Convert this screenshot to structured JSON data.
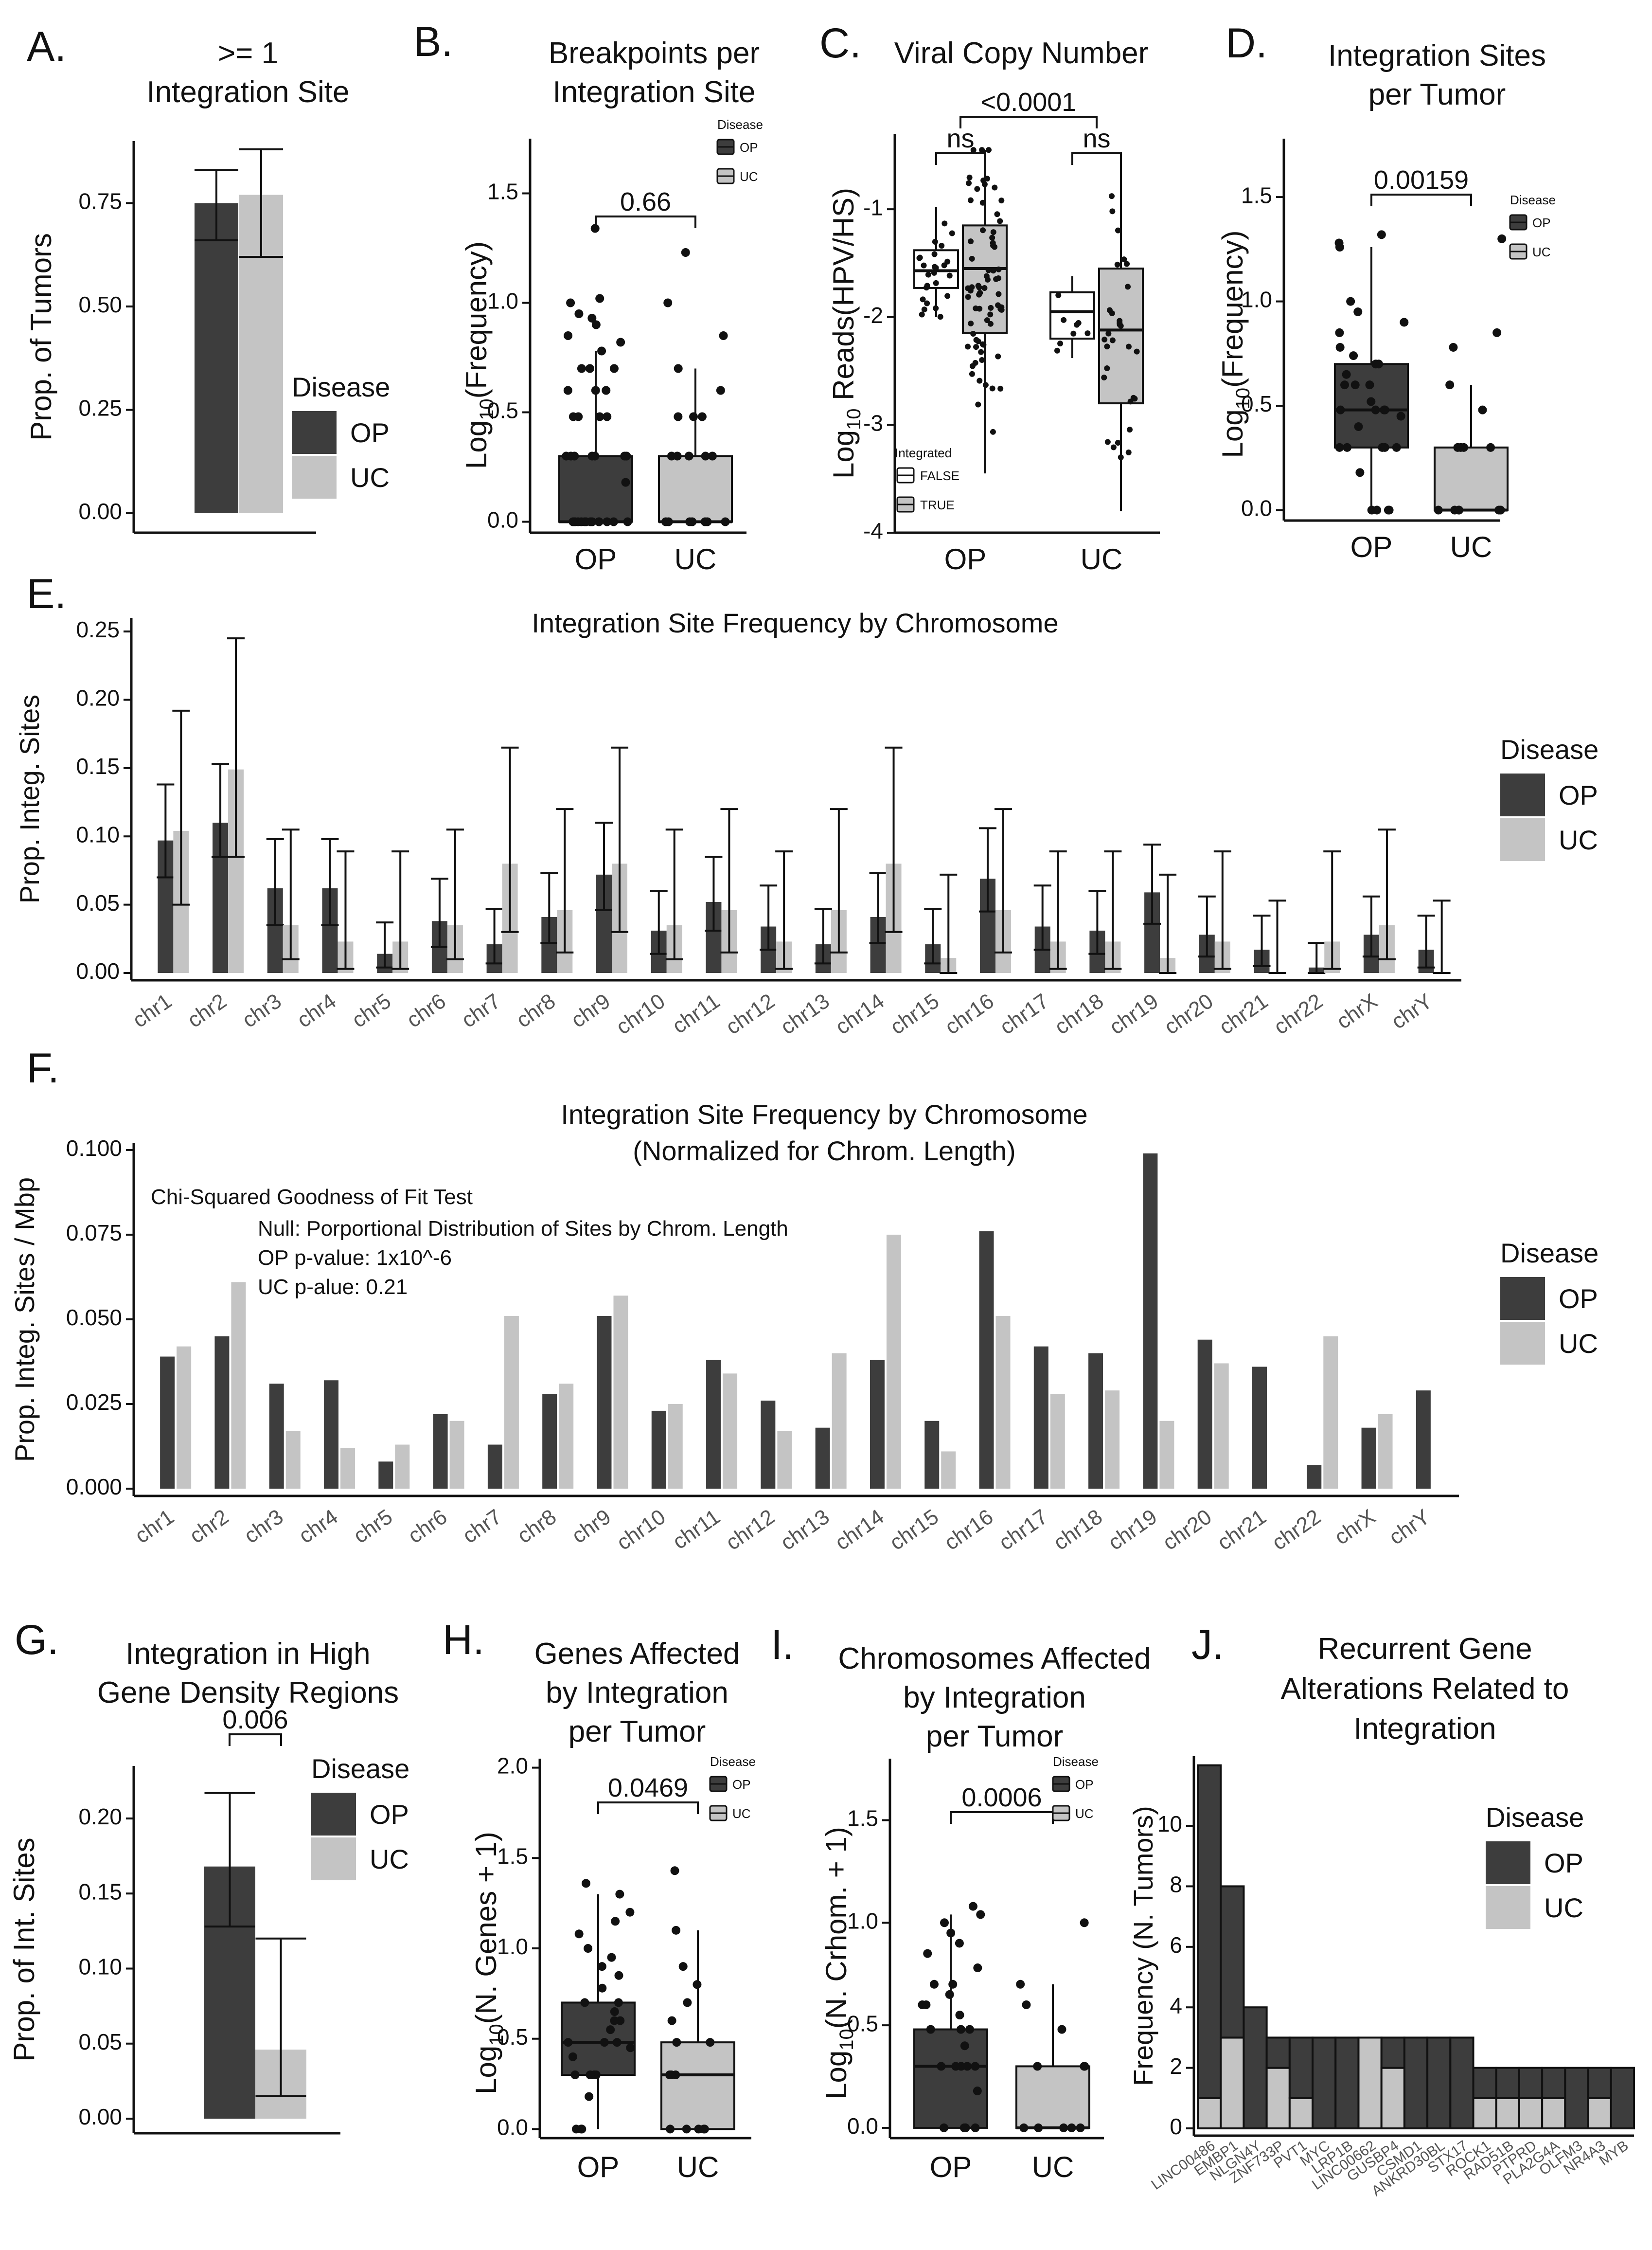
{
  "colors": {
    "OP": "#3d3d3d",
    "UC": "#c4c4c4",
    "axis": "#111111"
  },
  "panel_letters": [
    "A.",
    "B.",
    "C.",
    "D.",
    "E.",
    "F.",
    "G.",
    "H.",
    "I.",
    "J."
  ],
  "chart_data": [
    {
      "id": "A",
      "type": "bar",
      "title": [
        "&gt;= 1",
        "Integration Site"
      ],
      "ylabel": "Prop. of Tumors",
      "ylim": [
        0,
        0.9
      ],
      "yticks": [
        "0.00",
        "0.25",
        "0.50",
        "0.75"
      ],
      "ytick_values": [
        0,
        0.25,
        0.5,
        0.75
      ],
      "legend_title": "Disease",
      "legend": [
        "OP",
        "UC"
      ],
      "series": [
        {
          "name": "OP",
          "value": 0.75,
          "ci": [
            0.66,
            0.83
          ]
        },
        {
          "name": "UC",
          "value": 0.77,
          "ci": [
            0.62,
            0.88
          ]
        }
      ]
    },
    {
      "id": "B",
      "type": "box",
      "title": [
        "Breakpoints per",
        "Integration Site"
      ],
      "ylabel": "Log10(Frequency)",
      "ylim": [
        -0.05,
        1.75
      ],
      "yticks": [
        "0.0",
        "0.5",
        "1.0",
        "1.5"
      ],
      "ytick_values": [
        0,
        0.5,
        1.0,
        1.5
      ],
      "categories": [
        "OP",
        "UC"
      ],
      "legend_title": "Disease",
      "legend": [
        "OP",
        "UC"
      ],
      "pvalue": "0.66",
      "boxes": [
        {
          "name": "OP",
          "q1": 0,
          "median": 0,
          "q3": 0.3,
          "min": 0,
          "max": 0.78,
          "points": [
            1.34,
            1.02,
            1.0,
            0.95,
            0.93,
            0.9,
            0.85,
            0.82,
            0.78,
            0.7,
            0.7,
            0.7,
            0.6,
            0.6,
            0.6,
            0.48,
            0.48,
            0.48,
            0.48,
            0.3,
            0.3,
            0.3,
            0.3,
            0.3,
            0.3,
            0.3,
            0.18,
            0,
            0,
            0,
            0,
            0,
            0,
            0,
            0,
            0,
            0,
            0,
            0,
            0,
            0
          ]
        },
        {
          "name": "UC",
          "q1": 0,
          "median": 0,
          "q3": 0.3,
          "min": 0,
          "max": 0.7,
          "points": [
            1.23,
            1.0,
            0.85,
            0.7,
            0.6,
            0.48,
            0.48,
            0.48,
            0.3,
            0.3,
            0.3,
            0.3,
            0.3,
            0,
            0,
            0,
            0,
            0,
            0,
            0
          ]
        }
      ]
    },
    {
      "id": "C",
      "type": "box",
      "title": [
        "Viral Copy Number"
      ],
      "ylabel": "Log10 Reads(HPV/HS)",
      "ylim": [
        -4,
        -0.3
      ],
      "yticks": [
        "-4",
        "-3",
        "-2",
        "-1"
      ],
      "ytick_values": [
        -4,
        -3,
        -2,
        -1
      ],
      "categories": [
        "OP",
        "UC"
      ],
      "legend_title": "Integrated",
      "legend": [
        "FALSE",
        "TRUE"
      ],
      "comparisons": [
        {
          "label": "ns",
          "group": "OP"
        },
        {
          "label": "ns",
          "group": "UC"
        },
        {
          "label": "<0.0001",
          "group": "all"
        }
      ],
      "boxes": [
        {
          "name": "OP FALSE",
          "q1": -1.73,
          "median": -1.57,
          "q3": -1.38,
          "min": -2.0,
          "max": -0.98
        },
        {
          "name": "OP TRUE",
          "q1": -2.15,
          "median": -1.55,
          "q3": -1.15,
          "min": -3.45,
          "max": -0.45
        },
        {
          "name": "UC FALSE",
          "q1": -2.2,
          "median": -1.95,
          "q3": -1.77,
          "min": -2.38,
          "max": -1.62
        },
        {
          "name": "UC TRUE",
          "q1": -2.8,
          "median": -2.12,
          "q3": -1.55,
          "min": -3.8,
          "max": -0.55
        }
      ]
    },
    {
      "id": "D",
      "type": "box",
      "title": [
        "Integration Sites",
        "per Tumor"
      ],
      "ylabel": "Log10(Frequency)",
      "ylim": [
        -0.05,
        1.78
      ],
      "yticks": [
        "0.0",
        "0.5",
        "1.0",
        "1.5"
      ],
      "ytick_values": [
        0,
        0.5,
        1.0,
        1.5
      ],
      "categories": [
        "OP",
        "UC"
      ],
      "legend_title": "Disease",
      "legend": [
        "OP",
        "UC"
      ],
      "pvalue": "0.00159",
      "boxes": [
        {
          "name": "OP",
          "q1": 0.3,
          "median": 0.48,
          "q3": 0.7,
          "min": 0,
          "max": 1.26,
          "points": [
            1.32,
            1.28,
            1.26,
            1.0,
            0.95,
            0.9,
            0.85,
            0.78,
            0.74,
            0.7,
            0.7,
            0.65,
            0.6,
            0.6,
            0.6,
            0.52,
            0.48,
            0.48,
            0.48,
            0.48,
            0.45,
            0.4,
            0.3,
            0.3,
            0.3,
            0.3,
            0.3,
            0.18,
            0,
            0,
            0,
            0
          ]
        },
        {
          "name": "UC",
          "q1": 0,
          "median": 0,
          "q3": 0.3,
          "min": 0,
          "max": 0.6,
          "points": [
            1.3,
            0.85,
            0.78,
            0.6,
            0.48,
            0.3,
            0.3,
            0.3,
            0.3,
            0,
            0,
            0,
            0,
            0,
            0
          ]
        }
      ]
    },
    {
      "id": "E",
      "type": "bar",
      "title": [
        "Integration Site Frequency by Chromosome"
      ],
      "ylabel": "Prop. Integ. Sites",
      "ylim": [
        0,
        0.26
      ],
      "yticks": [
        "0.00",
        "0.05",
        "0.10",
        "0.15",
        "0.20",
        "0.25"
      ],
      "ytick_values": [
        0,
        0.05,
        0.1,
        0.15,
        0.2,
        0.25
      ],
      "legend_title": "Disease",
      "legend": [
        "OP",
        "UC"
      ],
      "categories": [
        "chr1",
        "chr2",
        "chr3",
        "chr4",
        "chr5",
        "chr6",
        "chr7",
        "chr8",
        "chr9",
        "chr10",
        "chr11",
        "chr12",
        "chr13",
        "chr14",
        "chr15",
        "chr16",
        "chr17",
        "chr18",
        "chr19",
        "chr20",
        "chr21",
        "chr22",
        "chrX",
        "chrY"
      ],
      "series": [
        {
          "name": "OP",
          "values": [
            0.097,
            0.11,
            0.062,
            0.062,
            0.014,
            0.038,
            0.021,
            0.041,
            0.072,
            0.031,
            0.052,
            0.034,
            0.021,
            0.041,
            0.021,
            0.069,
            0.034,
            0.031,
            0.059,
            0.028,
            0.017,
            0.004,
            0.028,
            0.017
          ],
          "ci_low": [
            0.07,
            0.085,
            0.035,
            0.035,
            0.004,
            0.019,
            0.007,
            0.022,
            0.046,
            0.014,
            0.031,
            0.017,
            0.007,
            0.022,
            0.007,
            0.045,
            0.017,
            0.014,
            0.036,
            0.012,
            0.005,
            0.0,
            0.012,
            0.004
          ],
          "ci_high": [
            0.138,
            0.153,
            0.098,
            0.098,
            0.037,
            0.069,
            0.047,
            0.073,
            0.11,
            0.06,
            0.085,
            0.064,
            0.047,
            0.073,
            0.047,
            0.106,
            0.064,
            0.06,
            0.094,
            0.056,
            0.042,
            0.022,
            0.056,
            0.042
          ]
        },
        {
          "name": "UC",
          "values": [
            0.104,
            0.149,
            0.035,
            0.023,
            0.023,
            0.035,
            0.08,
            0.046,
            0.08,
            0.035,
            0.046,
            0.023,
            0.046,
            0.08,
            0.011,
            0.046,
            0.023,
            0.023,
            0.011,
            0.023,
            0.0,
            0.023,
            0.035,
            0.0
          ],
          "ci_low": [
            0.05,
            0.085,
            0.01,
            0.003,
            0.003,
            0.01,
            0.03,
            0.015,
            0.03,
            0.01,
            0.015,
            0.003,
            0.015,
            0.03,
            0.0,
            0.015,
            0.003,
            0.003,
            0.0,
            0.003,
            0.0,
            0.003,
            0.01,
            0.0
          ],
          "ci_high": [
            0.192,
            0.245,
            0.105,
            0.089,
            0.089,
            0.105,
            0.165,
            0.12,
            0.165,
            0.105,
            0.12,
            0.089,
            0.12,
            0.165,
            0.072,
            0.12,
            0.089,
            0.089,
            0.072,
            0.089,
            0.053,
            0.089,
            0.105,
            0.053
          ]
        }
      ]
    },
    {
      "id": "F",
      "type": "bar",
      "title": [
        "Integration Site Frequency by Chromosome",
        "(Normalized for Chrom. Length)"
      ],
      "ylabel": "Prop. Integ. Sites / Mbp",
      "ylim": [
        0,
        0.102
      ],
      "yticks": [
        "0.000",
        "0.025",
        "0.050",
        "0.075",
        "0.100"
      ],
      "ytick_values": [
        0,
        0.025,
        0.05,
        0.075,
        0.1
      ],
      "legend_title": "Disease",
      "legend": [
        "OP",
        "UC"
      ],
      "annotation": [
        "Chi-Squared Goodness of Fit Test",
        "Null: Porportional Distribution of Sites by Chrom. Length",
        "OP p-value: 1x10^-6",
        "UC p-alue:  0.21"
      ],
      "categories": [
        "chr1",
        "chr2",
        "chr3",
        "chr4",
        "chr5",
        "chr6",
        "chr7",
        "chr8",
        "chr9",
        "chr10",
        "chr11",
        "chr12",
        "chr13",
        "chr14",
        "chr15",
        "chr16",
        "chr17",
        "chr18",
        "chr19",
        "chr20",
        "chr21",
        "chr22",
        "chrX",
        "chrY"
      ],
      "series": [
        {
          "name": "OP",
          "values": [
            0.039,
            0.045,
            0.031,
            0.032,
            0.008,
            0.022,
            0.013,
            0.028,
            0.051,
            0.023,
            0.038,
            0.026,
            0.018,
            0.038,
            0.02,
            0.076,
            0.042,
            0.04,
            0.099,
            0.044,
            0.036,
            0.007,
            0.018,
            0.029
          ]
        },
        {
          "name": "UC",
          "values": [
            0.042,
            0.061,
            0.017,
            0.012,
            0.013,
            0.02,
            0.051,
            0.031,
            0.057,
            0.025,
            0.034,
            0.017,
            0.04,
            0.075,
            0.011,
            0.051,
            0.028,
            0.029,
            0.02,
            0.037,
            0.0,
            0.045,
            0.022,
            0.0
          ]
        }
      ]
    },
    {
      "id": "G",
      "type": "bar",
      "title": [
        "Integration in High",
        "Gene Density Regions"
      ],
      "ylabel": "Prop. of Int. Sites",
      "ylim": [
        0,
        0.235
      ],
      "yticks": [
        "0.00",
        "0.05",
        "0.10",
        "0.15",
        "0.20"
      ],
      "ytick_values": [
        0,
        0.05,
        0.1,
        0.15,
        0.2
      ],
      "legend_title": "Disease",
      "legend": [
        "OP",
        "UC"
      ],
      "pvalue": "0.006",
      "series": [
        {
          "name": "OP",
          "value": 0.168,
          "ci": [
            0.128,
            0.217
          ]
        },
        {
          "name": "UC",
          "value": 0.046,
          "ci": [
            0.015,
            0.12
          ]
        }
      ]
    },
    {
      "id": "H",
      "type": "box",
      "title": [
        "Genes Affected",
        "by Integration",
        "per Tumor"
      ],
      "ylabel": "Log10(N. Genes + 1)",
      "ylim": [
        -0.05,
        2.05
      ],
      "yticks": [
        "0.0",
        "0.5",
        "1.0",
        "1.5",
        "2.0"
      ],
      "ytick_values": [
        0,
        0.5,
        1.0,
        1.5,
        2.0
      ],
      "categories": [
        "OP",
        "UC"
      ],
      "legend_title": "Disease",
      "legend": [
        "OP",
        "UC"
      ],
      "pvalue": "0.0469",
      "boxes": [
        {
          "name": "OP",
          "q1": 0.3,
          "median": 0.48,
          "q3": 0.7,
          "min": 0,
          "max": 1.3,
          "points": [
            1.36,
            1.3,
            1.2,
            1.15,
            1.08,
            1.0,
            0.95,
            0.9,
            0.85,
            0.78,
            0.7,
            0.7,
            0.65,
            0.6,
            0.6,
            0.55,
            0.48,
            0.48,
            0.48,
            0.45,
            0.4,
            0.3,
            0.3,
            0.3,
            0.3,
            0.18,
            0,
            0,
            0
          ]
        },
        {
          "name": "UC",
          "q1": 0,
          "median": 0.3,
          "q3": 0.48,
          "min": 0,
          "max": 1.1,
          "points": [
            1.43,
            1.1,
            0.9,
            0.8,
            0.7,
            0.6,
            0.48,
            0.48,
            0.3,
            0.3,
            0.3,
            0,
            0,
            0,
            0,
            0
          ]
        }
      ]
    },
    {
      "id": "I",
      "type": "box",
      "title": [
        "Chromosomes Affected",
        "by Integration",
        "per Tumor"
      ],
      "ylabel": "Log10(N. Crhom. + 1)",
      "ylim": [
        -0.05,
        1.8
      ],
      "yticks": [
        "0.0",
        "0.5",
        "1.0",
        "1.5"
      ],
      "ytick_values": [
        0,
        0.5,
        1.0,
        1.5
      ],
      "categories": [
        "OP",
        "UC"
      ],
      "legend_title": "Disease",
      "legend": [
        "OP",
        "UC"
      ],
      "pvalue": "0.0006",
      "boxes": [
        {
          "name": "OP",
          "q1": 0,
          "median": 0.3,
          "q3": 0.48,
          "min": 0,
          "max": 1.04,
          "points": [
            1.08,
            1.04,
            1.0,
            0.95,
            0.9,
            0.85,
            0.78,
            0.7,
            0.7,
            0.65,
            0.6,
            0.6,
            0.55,
            0.48,
            0.48,
            0.48,
            0.4,
            0.3,
            0.3,
            0.3,
            0.3,
            0.3,
            0.18,
            0,
            0,
            0,
            0,
            0
          ]
        },
        {
          "name": "UC",
          "q1": 0,
          "median": 0,
          "q3": 0.3,
          "min": 0,
          "max": 0.7,
          "points": [
            1.0,
            0.7,
            0.6,
            0.48,
            0.3,
            0.3,
            0.3,
            0,
            0,
            0,
            0,
            0
          ]
        }
      ]
    },
    {
      "id": "J",
      "type": "bar",
      "title": [
        "Recurrent Gene",
        "Alterations Related to",
        "Integration"
      ],
      "ylabel": "Frequency (N. Tumors)",
      "ylim": [
        0,
        12.3
      ],
      "yticks": [
        "0",
        "2",
        "4",
        "6",
        "8",
        "10"
      ],
      "ytick_values": [
        0,
        2,
        4,
        6,
        8,
        10
      ],
      "legend_title": "Disease",
      "legend": [
        "OP",
        "UC"
      ],
      "categories": [
        "LINC00486",
        "EMBP1",
        "NLGN4Y",
        "ZNF733P",
        "PVT1",
        "MYC",
        "LRP1B",
        "LINC00662",
        "GUSBP4",
        "CSMD1",
        "ANKRD30BL",
        "STX17",
        "ROCK1",
        "RAD51B",
        "PTPRD",
        "PLA2G4A",
        "OLFM3",
        "NR4A3",
        "MYB"
      ],
      "series": [
        {
          "name": "OP",
          "values": [
            11,
            5,
            4,
            1,
            2,
            3,
            3,
            0,
            1,
            3,
            3,
            3,
            1,
            1,
            1,
            1,
            2,
            1,
            2
          ]
        },
        {
          "name": "UC",
          "values": [
            1,
            3,
            0,
            2,
            1,
            0,
            0,
            3,
            2,
            0,
            0,
            0,
            1,
            1,
            1,
            1,
            0,
            1,
            0
          ]
        }
      ]
    }
  ]
}
